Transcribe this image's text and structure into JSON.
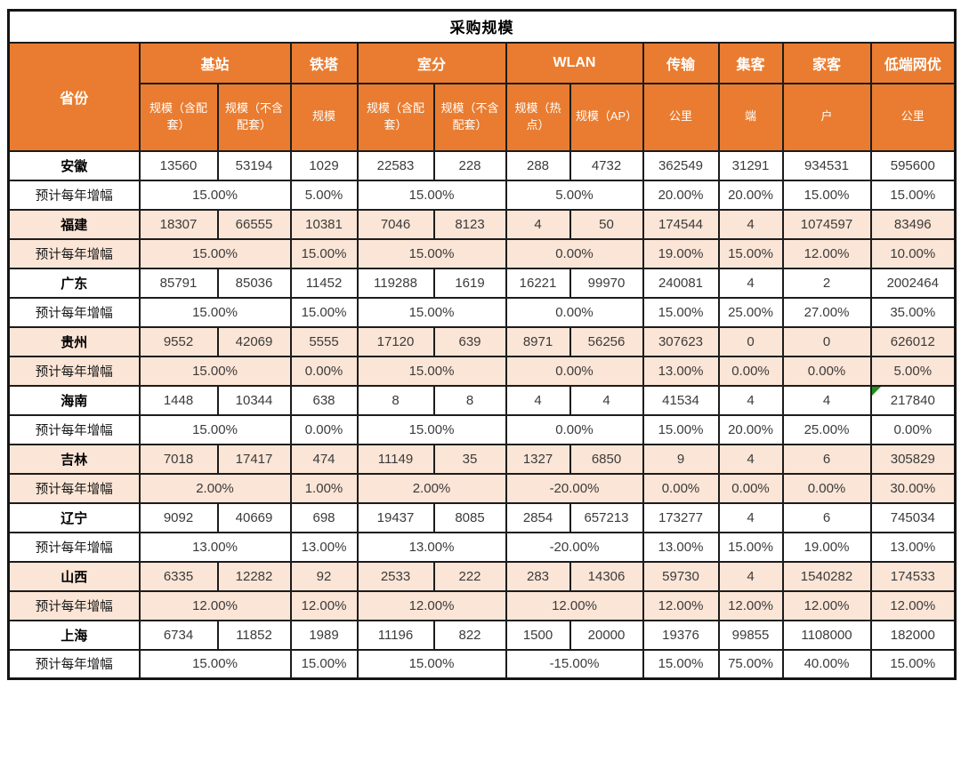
{
  "title": "采购规模",
  "header": {
    "province_label": "省份",
    "groups": [
      {
        "label": "基站"
      },
      {
        "label": "铁塔"
      },
      {
        "label": "室分"
      },
      {
        "label": "WLAN"
      },
      {
        "label": "传输"
      },
      {
        "label": "集客"
      },
      {
        "label": "家客"
      },
      {
        "label": "低端网优"
      }
    ],
    "subheaders": [
      "规模（含配套）",
      "规模（不含配套）",
      "规模",
      "规模（含配套）",
      "规模（不含配套）",
      "规模（热点）",
      "规模（AP）",
      "公里",
      "端",
      "户",
      "公里"
    ]
  },
  "growth_row_label": "预计每年增幅",
  "provinces": [
    {
      "name": "安徽",
      "values": [
        "13560",
        "53194",
        "1029",
        "22583",
        "228",
        "288",
        "4732",
        "362549",
        "31291",
        "934531",
        "595600"
      ],
      "growth": [
        "15.00%",
        "5.00%",
        "15.00%",
        "5.00%",
        "20.00%",
        "20.00%",
        "15.00%",
        "15.00%"
      ]
    },
    {
      "name": "福建",
      "values": [
        "18307",
        "66555",
        "10381",
        "7046",
        "8123",
        "4",
        "50",
        "174544",
        "4",
        "1074597",
        "83496"
      ],
      "growth": [
        "15.00%",
        "15.00%",
        "15.00%",
        "0.00%",
        "19.00%",
        "15.00%",
        "12.00%",
        "10.00%"
      ]
    },
    {
      "name": "广东",
      "values": [
        "85791",
        "85036",
        "11452",
        "119288",
        "1619",
        "16221",
        "99970",
        "240081",
        "4",
        "2",
        "2002464"
      ],
      "growth": [
        "15.00%",
        "15.00%",
        "15.00%",
        "0.00%",
        "15.00%",
        "25.00%",
        "27.00%",
        "35.00%"
      ]
    },
    {
      "name": "贵州",
      "values": [
        "9552",
        "42069",
        "5555",
        "17120",
        "639",
        "8971",
        "56256",
        "307623",
        "0",
        "0",
        "626012"
      ],
      "growth": [
        "15.00%",
        "0.00%",
        "15.00%",
        "0.00%",
        "13.00%",
        "0.00%",
        "0.00%",
        "5.00%"
      ]
    },
    {
      "name": "海南",
      "values": [
        "1448",
        "10344",
        "638",
        "8",
        "8",
        "4",
        "4",
        "41534",
        "4",
        "4",
        "217840"
      ],
      "growth": [
        "15.00%",
        "0.00%",
        "15.00%",
        "0.00%",
        "15.00%",
        "20.00%",
        "25.00%",
        "0.00%"
      ],
      "corner_marker": true
    },
    {
      "name": "吉林",
      "values": [
        "7018",
        "17417",
        "474",
        "11149",
        "35",
        "1327",
        "6850",
        "9",
        "4",
        "6",
        "305829"
      ],
      "growth": [
        "2.00%",
        "1.00%",
        "2.00%",
        "-20.00%",
        "0.00%",
        "0.00%",
        "0.00%",
        "30.00%"
      ]
    },
    {
      "name": "辽宁",
      "values": [
        "9092",
        "40669",
        "698",
        "19437",
        "8085",
        "2854",
        "657213",
        "173277",
        "4",
        "6",
        "745034"
      ],
      "growth": [
        "13.00%",
        "13.00%",
        "13.00%",
        "-20.00%",
        "13.00%",
        "15.00%",
        "19.00%",
        "13.00%"
      ]
    },
    {
      "name": "山西",
      "values": [
        "6335",
        "12282",
        "92",
        "2533",
        "222",
        "283",
        "14306",
        "59730",
        "4",
        "1540282",
        "174533"
      ],
      "growth": [
        "12.00%",
        "12.00%",
        "12.00%",
        "12.00%",
        "12.00%",
        "12.00%",
        "12.00%",
        "12.00%"
      ]
    },
    {
      "name": "上海",
      "values": [
        "6734",
        "11852",
        "1989",
        "11196",
        "822",
        "1500",
        "20000",
        "19376",
        "99855",
        "1108000",
        "182000"
      ],
      "growth": [
        "15.00%",
        "15.00%",
        "15.00%",
        "-15.00%",
        "15.00%",
        "75.00%",
        "40.00%",
        "15.00%"
      ]
    }
  ],
  "colors": {
    "header_orange": "#E97C30",
    "alt_row_peach": "#FBE5D6",
    "border_dark": "#1C1C1C",
    "corner_marker_green": "#1F8F1F",
    "data_text": "#3B3B3B"
  }
}
